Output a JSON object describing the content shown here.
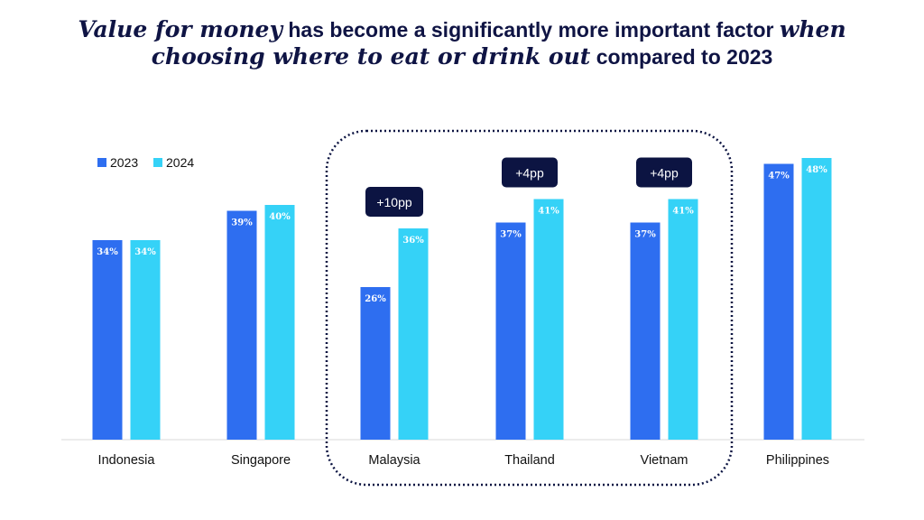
{
  "title": {
    "part1": "Value for money",
    "part2": " has become a significantly more important factor ",
    "part3": "when",
    "part4": "choosing where to eat or drink out",
    "part5": " compared to 2023"
  },
  "colors": {
    "series_2023": "#2e6ef0",
    "series_2024": "#35d2f7",
    "annotation_bg": "#0c1442",
    "highlight_border": "#0c1442",
    "axis": "#d9d9d9"
  },
  "chart_data": {
    "type": "bar",
    "categories": [
      "Indonesia",
      "Singapore",
      "Malaysia",
      "Thailand",
      "Vietnam",
      "Philippines"
    ],
    "series": [
      {
        "name": "2023",
        "values": [
          34,
          39,
          26,
          37,
          37,
          47
        ],
        "labels": [
          "34%",
          "39%",
          "26%",
          "37%",
          "37%",
          "47%"
        ]
      },
      {
        "name": "2024",
        "values": [
          34,
          40,
          36,
          41,
          41,
          48
        ],
        "labels": [
          "34%",
          "40%",
          "36%",
          "41%",
          "41%",
          "48%"
        ]
      }
    ],
    "annotations": [
      {
        "category": "Malaysia",
        "text": "+10pp"
      },
      {
        "category": "Thailand",
        "text": "+4pp"
      },
      {
        "category": "Vietnam",
        "text": "+4pp"
      }
    ],
    "highlighted_categories": [
      "Malaysia",
      "Thailand",
      "Vietnam"
    ],
    "legend": {
      "position": "top-left"
    },
    "grid": false,
    "ylim": [
      0,
      50
    ]
  }
}
